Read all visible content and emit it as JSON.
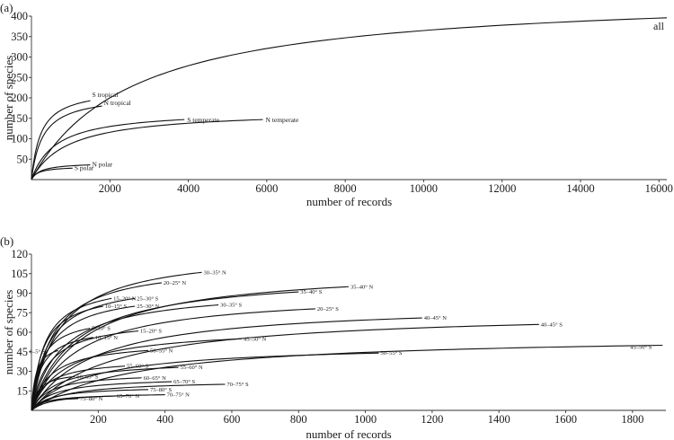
{
  "chart_data": [
    {
      "type": "line",
      "panel_label": "(a)",
      "xlabel": "number of records",
      "ylabel": "number of species",
      "xlim": [
        0,
        16200
      ],
      "ylim": [
        0,
        400
      ],
      "xticks": [
        2000,
        4000,
        6000,
        8000,
        10000,
        12000,
        14000,
        16000
      ],
      "yticks": [
        50,
        100,
        150,
        200,
        250,
        300,
        350,
        400
      ],
      "grid": false,
      "series": [
        {
          "name": "all",
          "x_end": 16200,
          "y_end": 396
        },
        {
          "name": "S tropical",
          "x_end": 1500,
          "y_end": 193
        },
        {
          "name": "N tropical",
          "x_end": 1800,
          "y_end": 180
        },
        {
          "name": "S temperate",
          "x_end": 3900,
          "y_end": 147
        },
        {
          "name": "N temperate",
          "x_end": 5900,
          "y_end": 147
        },
        {
          "name": "N polar",
          "x_end": 1500,
          "y_end": 36
        },
        {
          "name": "S polar",
          "x_end": 1050,
          "y_end": 28
        }
      ]
    },
    {
      "type": "line",
      "panel_label": "(b)",
      "xlabel": "number of records",
      "ylabel": "number of species",
      "xlim": [
        0,
        1900
      ],
      "ylim": [
        0,
        120
      ],
      "xticks": [
        200,
        400,
        600,
        800,
        1000,
        1200,
        1400,
        1600,
        1800
      ],
      "yticks": [
        15,
        30,
        45,
        60,
        75,
        90,
        105,
        120
      ],
      "grid": false,
      "series": [
        {
          "name": "30–35° N",
          "x_end": 510,
          "y_end": 106
        },
        {
          "name": "20–25° N",
          "x_end": 390,
          "y_end": 98
        },
        {
          "name": "25–30° S",
          "x_end": 310,
          "y_end": 86
        },
        {
          "name": "15–20° N",
          "x_end": 240,
          "y_end": 86
        },
        {
          "name": "25–30° N",
          "x_end": 310,
          "y_end": 80
        },
        {
          "name": "10–15° S",
          "x_end": 215,
          "y_end": 80
        },
        {
          "name": "35–40° S",
          "x_end": 800,
          "y_end": 91
        },
        {
          "name": "35–40° N",
          "x_end": 950,
          "y_end": 95
        },
        {
          "name": "30–35° S",
          "x_end": 560,
          "y_end": 81
        },
        {
          "name": "20–25° S",
          "x_end": 850,
          "y_end": 78
        },
        {
          "name": "40–45° N",
          "x_end": 1170,
          "y_end": 71
        },
        {
          "name": "40–45° S",
          "x_end": 1520,
          "y_end": 66
        },
        {
          "name": "5–10° S",
          "x_end": 175,
          "y_end": 63
        },
        {
          "name": "15–20° S",
          "x_end": 320,
          "y_end": 61
        },
        {
          "name": "10–15° N",
          "x_end": 185,
          "y_end": 56
        },
        {
          "name": "45–50° N",
          "x_end": 630,
          "y_end": 55
        },
        {
          "name": "0–5° S",
          "x_end": 80,
          "y_end": 46
        },
        {
          "name": "50–55° N",
          "x_end": 350,
          "y_end": 46
        },
        {
          "name": "45–50° S",
          "x_end": 1890,
          "y_end": 50
        },
        {
          "name": "50–55° S",
          "x_end": 1040,
          "y_end": 44
        },
        {
          "name": "55–60° S",
          "x_end": 280,
          "y_end": 34
        },
        {
          "name": "55–60° N",
          "x_end": 440,
          "y_end": 33
        },
        {
          "name": "60–65° S",
          "x_end": 130,
          "y_end": 26
        },
        {
          "name": "60–65° N",
          "x_end": 330,
          "y_end": 25
        },
        {
          "name": "65–70° S",
          "x_end": 420,
          "y_end": 22
        },
        {
          "name": "70–75° S",
          "x_end": 580,
          "y_end": 20
        },
        {
          "name": "75–80° S",
          "x_end": 350,
          "y_end": 16
        },
        {
          "name": "70–75° N",
          "x_end": 400,
          "y_end": 12
        },
        {
          "name": "65–70° N",
          "x_end": 250,
          "y_end": 11
        },
        {
          "name": "75–80° N",
          "x_end": 140,
          "y_end": 9
        }
      ]
    }
  ]
}
